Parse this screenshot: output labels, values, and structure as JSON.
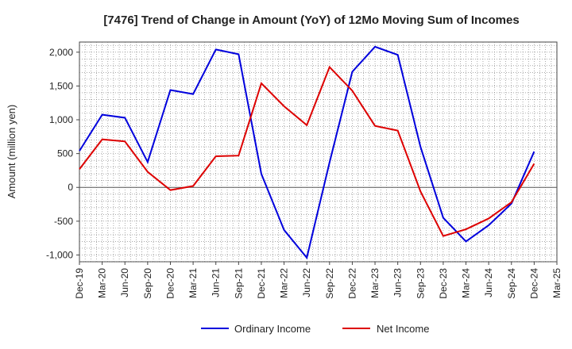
{
  "chart_data": {
    "type": "line",
    "title": "[7476]  Trend of Change in Amount (YoY) of 12Mo Moving Sum of Incomes",
    "ylabel": "Amount (million yen)",
    "xlabel": "",
    "ylim": [
      -1100,
      2150
    ],
    "yticks": [
      -1000,
      -500,
      0,
      500,
      1000,
      1500,
      2000
    ],
    "ytick_labels": [
      "-1,000",
      "-500",
      "0",
      "500",
      "1,000",
      "1,500",
      "2,000"
    ],
    "categories": [
      "Dec-19",
      "Mar-20",
      "Jun-20",
      "Sep-20",
      "Dec-20",
      "Mar-21",
      "Jun-21",
      "Sep-21",
      "Dec-21",
      "Mar-22",
      "Jun-22",
      "Sep-22",
      "Dec-22",
      "Mar-23",
      "Jun-23",
      "Sep-23",
      "Dec-23",
      "Mar-24",
      "Jun-24",
      "Sep-24",
      "Dec-24",
      "Mar-25"
    ],
    "grid": true,
    "legend_position": "bottom",
    "series": [
      {
        "name": "Ordinary Income",
        "color": "#0000dd",
        "values": [
          540,
          1075,
          1030,
          375,
          1440,
          1380,
          2040,
          1970,
          200,
          -630,
          -1040,
          370,
          1710,
          2080,
          1960,
          600,
          -450,
          -800,
          -560,
          -240,
          530,
          null
        ]
      },
      {
        "name": "Net Income",
        "color": "#dd0000",
        "values": [
          270,
          710,
          680,
          230,
          -40,
          20,
          460,
          470,
          1540,
          1200,
          920,
          1780,
          1430,
          910,
          840,
          -60,
          -720,
          -620,
          -460,
          -220,
          350,
          null
        ]
      }
    ]
  }
}
